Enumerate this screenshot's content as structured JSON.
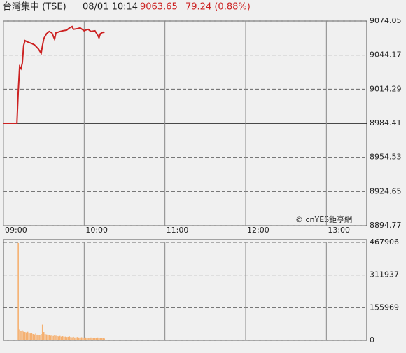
{
  "header": {
    "title": "台灣集中 (TSE)",
    "time": "08/01 10:14",
    "price": "9063.65",
    "change": "79.24 (0.88%)",
    "credit": "© cnYES鉅亨網"
  },
  "chart_data": [
    {
      "type": "line",
      "color": "#cc2222",
      "x": [
        0,
        10,
        11,
        12,
        13,
        14,
        15,
        16,
        18,
        21,
        23,
        26,
        28,
        29,
        30,
        32,
        34,
        36,
        38,
        39,
        42,
        44,
        47,
        49,
        51,
        52,
        55,
        57,
        60,
        61,
        63,
        65,
        68,
        70,
        71,
        72,
        74,
        75
      ],
      "values": [
        8984.41,
        8984.41,
        9012.7,
        9034.1,
        9032.3,
        9037.2,
        9052.6,
        9056.9,
        9055.7,
        9054.4,
        9053.2,
        9049.5,
        9045.8,
        9052.6,
        9058.7,
        9063.0,
        9064.9,
        9063.7,
        9058.1,
        9063.7,
        9064.9,
        9065.5,
        9066.1,
        9068.0,
        9069.2,
        9066.8,
        9067.4,
        9068.0,
        9065.5,
        9066.1,
        9066.8,
        9064.9,
        9065.5,
        9061.8,
        9059.3,
        9063.0,
        9064.3,
        9063.65
      ],
      "xlim": [
        0,
        270
      ],
      "xticks": [
        {
          "value": 0,
          "label": "09:00"
        },
        {
          "value": 60,
          "label": "10:00"
        },
        {
          "value": 120,
          "label": "11:00"
        },
        {
          "value": 180,
          "label": "12:00"
        },
        {
          "value": 240,
          "label": "13:00"
        }
      ],
      "ylim": [
        8894.77,
        9074.05
      ],
      "yticks": [
        8894.77,
        8924.65,
        8954.53,
        8984.41,
        9014.29,
        9044.17,
        9074.05
      ],
      "grid": true
    },
    {
      "type": "bar",
      "color": "#f5b070",
      "x": [
        11,
        12,
        13,
        14,
        15,
        16,
        17,
        18,
        19,
        20,
        21,
        22,
        23,
        24,
        25,
        26,
        27,
        28,
        29,
        30,
        31,
        32,
        33,
        34,
        35,
        36,
        37,
        38,
        39,
        40,
        41,
        42,
        43,
        44,
        45,
        46,
        47,
        48,
        49,
        50,
        51,
        52,
        53,
        54,
        55,
        56,
        57,
        58,
        59,
        60,
        61,
        62,
        63,
        64,
        65,
        66,
        67,
        68,
        69,
        70,
        71,
        72,
        73,
        74,
        75
      ],
      "values": [
        465000,
        52000,
        45000,
        48000,
        42000,
        40000,
        38000,
        41000,
        35000,
        33000,
        36000,
        30000,
        28000,
        32000,
        27000,
        25000,
        26000,
        30000,
        75000,
        40000,
        30000,
        28000,
        25000,
        24000,
        22000,
        23000,
        21000,
        26000,
        22000,
        20000,
        19000,
        21000,
        18000,
        20000,
        17000,
        18000,
        16000,
        17000,
        19000,
        16000,
        15000,
        17000,
        14000,
        15000,
        16000,
        14000,
        13000,
        15000,
        14000,
        13000,
        14000,
        12000,
        13000,
        12000,
        14000,
        12000,
        11000,
        13000,
        12000,
        14000,
        12000,
        11000,
        12000,
        10000,
        9000
      ],
      "xlim": [
        0,
        270
      ],
      "xticks": [
        60,
        120,
        180,
        240
      ],
      "ylim": [
        0,
        467906
      ],
      "yticks": [
        0,
        155969,
        311937,
        467906
      ],
      "grid": true
    }
  ]
}
